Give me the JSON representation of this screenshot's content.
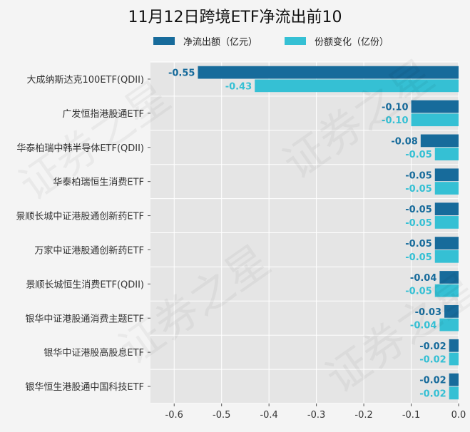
{
  "chart_data": {
    "type": "bar",
    "orientation": "horizontal",
    "title": "11月12日跨境ETF净流出前10",
    "xlabel": "",
    "ylabel": "",
    "categories": [
      "大成纳斯达克100ETF(QDII)",
      "广发恒指港股通ETF",
      "华泰柏瑞中韩半导体ETF(QDII)",
      "华泰柏瑞恒生消费ETF",
      "景顺长城中证港股通创新药ETF",
      "万家中证港股通创新药ETF",
      "景顺长城恒生消费ETF(QDII)",
      "银华中证港股通消费主题ETF",
      "银华中证港股高股息ETF",
      "银华恒生港股通中国科技ETF"
    ],
    "series": [
      {
        "name": "净流出额（亿元）",
        "color": "#176b9b",
        "values": [
          -0.55,
          -0.1,
          -0.08,
          -0.05,
          -0.05,
          -0.05,
          -0.04,
          -0.03,
          -0.02,
          -0.02
        ],
        "labels": [
          "-0.55",
          "-0.10",
          "-0.08",
          "-0.05",
          "-0.05",
          "-0.05",
          "-0.04",
          "-0.03",
          "-0.02",
          "-0.02"
        ]
      },
      {
        "name": "份额变化（亿份）",
        "color": "#35c0d4",
        "values": [
          -0.43,
          -0.1,
          -0.05,
          -0.05,
          -0.05,
          -0.05,
          -0.05,
          -0.04,
          -0.02,
          -0.02
        ],
        "labels": [
          "-0.43",
          "-0.10",
          "-0.05",
          "-0.05",
          "-0.05",
          "-0.05",
          "-0.05",
          "-0.04",
          "-0.02",
          "-0.02"
        ]
      }
    ],
    "xlim": [
      -0.65,
      0.0
    ],
    "xticks": [
      "-0.6",
      "-0.5",
      "-0.4",
      "-0.3",
      "-0.2",
      "-0.1",
      "0.0"
    ],
    "xtick_values": [
      -0.6,
      -0.5,
      -0.4,
      -0.3,
      -0.2,
      -0.1,
      0.0
    ],
    "grid": true,
    "legend_position": "top"
  },
  "watermark": "证券之星"
}
